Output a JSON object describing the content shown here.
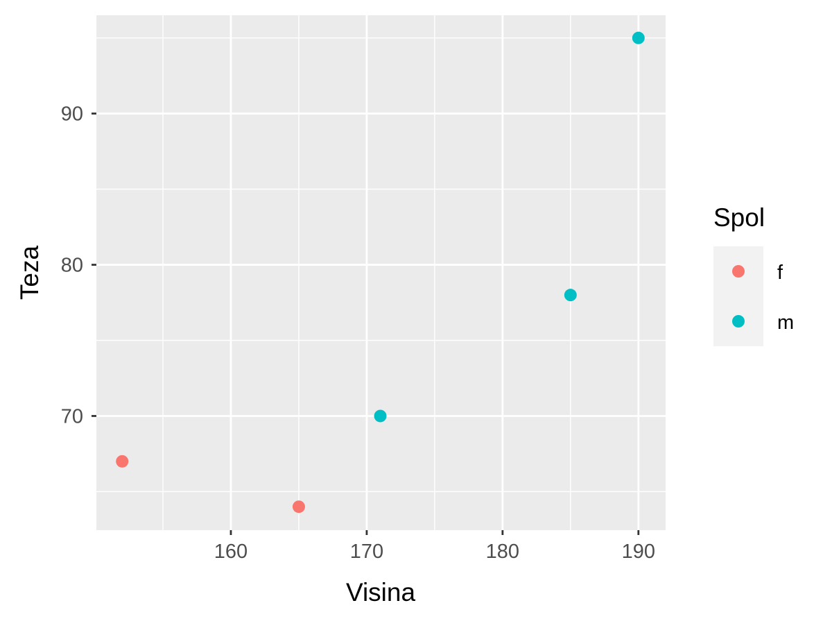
{
  "chart_data": {
    "type": "scatter",
    "title": "",
    "xlabel": "Visina",
    "ylabel": "Teza",
    "xlim": [
      150.1,
      192.0
    ],
    "ylim": [
      62.45,
      96.5
    ],
    "x_ticks": [
      160,
      170,
      180,
      190
    ],
    "y_ticks": [
      70,
      80,
      90
    ],
    "x_minor_ticks": [
      155,
      165,
      175,
      185
    ],
    "y_minor_ticks": [
      65,
      75,
      85,
      95
    ],
    "grid": true,
    "legend": {
      "title": "Spol",
      "placement": "right"
    },
    "series": [
      {
        "name": "f",
        "color": "#F8766D",
        "points": [
          {
            "x": 152,
            "y": 67
          },
          {
            "x": 165,
            "y": 64
          }
        ]
      },
      {
        "name": "m",
        "color": "#00BFC4",
        "points": [
          {
            "x": 171,
            "y": 70
          },
          {
            "x": 185,
            "y": 78
          },
          {
            "x": 190,
            "y": 95
          }
        ]
      }
    ]
  }
}
